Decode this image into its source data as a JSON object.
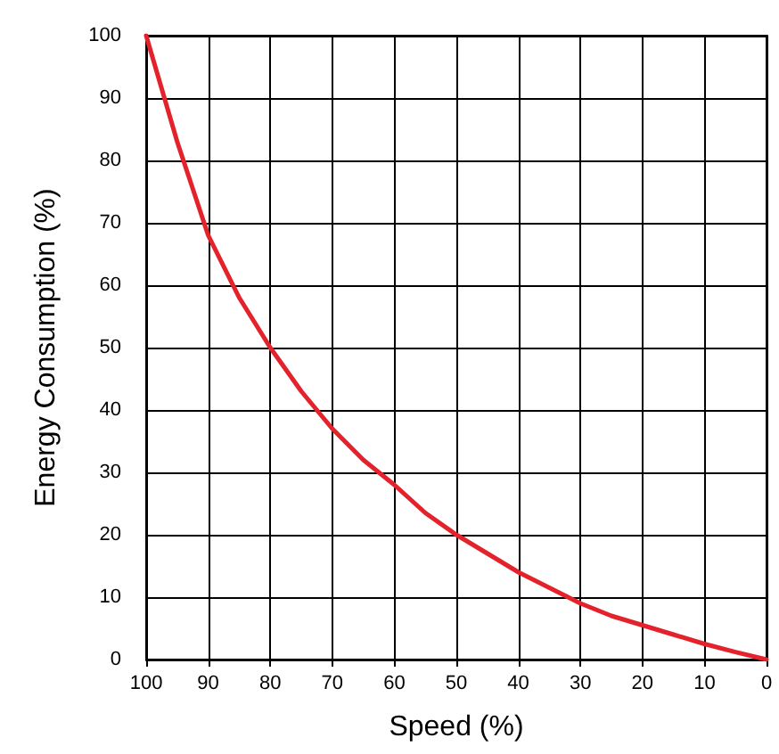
{
  "chart_data": {
    "type": "line",
    "xlabel": "Speed (%)",
    "ylabel": "Energy Consumption (%)",
    "x": [
      100,
      95,
      90,
      85,
      80,
      75,
      70,
      65,
      60,
      55,
      50,
      45,
      40,
      35,
      30,
      25,
      20,
      15,
      10,
      5,
      0
    ],
    "series": [
      {
        "color": "#e3222b",
        "values": [
          100,
          83,
          68,
          58,
          50,
          43,
          37,
          32,
          28,
          23.5,
          20,
          17,
          14,
          11.5,
          9,
          7,
          5.5,
          4,
          2.5,
          1.2,
          0
        ]
      }
    ],
    "xlim": [
      100,
      0
    ],
    "ylim": [
      0,
      100
    ],
    "xticks": [
      100,
      90,
      80,
      70,
      60,
      50,
      40,
      30,
      20,
      10,
      0
    ],
    "yticks": [
      0,
      10,
      20,
      30,
      40,
      50,
      60,
      70,
      80,
      90,
      100
    ],
    "grid": true,
    "marker": "none",
    "line_style": "solid"
  }
}
